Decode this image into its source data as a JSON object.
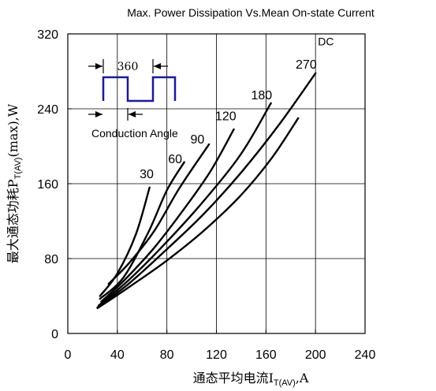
{
  "chart_data": {
    "type": "line",
    "title": "Max. Power Dissipation Vs.Mean On-state Current",
    "xlabel": {
      "main": "通态平均电流I",
      "sub": "T(AV)",
      "unit": ",A"
    },
    "ylabel": {
      "main": "最大通态功耗P",
      "sub": "T(AV)",
      "unit": "(max),W"
    },
    "xlim": [
      0,
      240
    ],
    "ylim": [
      0,
      320
    ],
    "xticks": [
      "0",
      "40",
      "80",
      "120",
      "160",
      "200",
      "240"
    ],
    "yticks": [
      "0",
      "80",
      "160",
      "240",
      "320"
    ],
    "grid": true,
    "series": [
      {
        "name": "30",
        "points": [
          [
            26,
            40
          ],
          [
            40,
            64
          ],
          [
            55,
            106
          ],
          [
            66,
            156
          ]
        ]
      },
      {
        "name": "60",
        "points": [
          [
            26,
            37
          ],
          [
            45,
            60
          ],
          [
            65,
            108
          ],
          [
            80,
            153
          ],
          [
            94,
            183
          ]
        ]
      },
      {
        "name": "90",
        "points": [
          [
            33,
            53
          ],
          [
            50,
            76
          ],
          [
            70,
            110
          ],
          [
            90,
            155
          ],
          [
            114,
            202
          ]
        ]
      },
      {
        "name": "120",
        "points": [
          [
            27,
            34
          ],
          [
            45,
            56
          ],
          [
            70,
            92
          ],
          [
            95,
            135
          ],
          [
            116,
            175
          ],
          [
            134,
            218
          ]
        ]
      },
      {
        "name": "180",
        "points": [
          [
            25,
            30
          ],
          [
            50,
            58
          ],
          [
            80,
            98
          ],
          [
            110,
            142
          ],
          [
            140,
            192
          ],
          [
            164,
            246
          ]
        ]
      },
      {
        "name": "270",
        "points": [
          [
            24,
            28
          ],
          [
            50,
            54
          ],
          [
            80,
            90
          ],
          [
            110,
            128
          ],
          [
            140,
            172
          ],
          [
            170,
            222
          ],
          [
            200,
            278
          ]
        ]
      },
      {
        "name": "DC",
        "points": [
          [
            24,
            27
          ],
          [
            50,
            50
          ],
          [
            80,
            78
          ],
          [
            110,
            110
          ],
          [
            140,
            148
          ],
          [
            165,
            188
          ],
          [
            186,
            230
          ]
        ]
      }
    ],
    "curve_labels": [
      {
        "text": "30",
        "x": 58,
        "y": 166
      },
      {
        "text": "60",
        "x": 81,
        "y": 182
      },
      {
        "text": "90",
        "x": 99,
        "y": 203
      },
      {
        "text": "120",
        "x": 119,
        "y": 228
      },
      {
        "text": "180",
        "x": 148,
        "y": 250
      },
      {
        "text": "270",
        "x": 184,
        "y": 283
      },
      {
        "text": "DC",
        "x": 202,
        "y": 308
      }
    ],
    "inset": {
      "period_label": "360",
      "angle_label": "Conduction Angle"
    }
  }
}
